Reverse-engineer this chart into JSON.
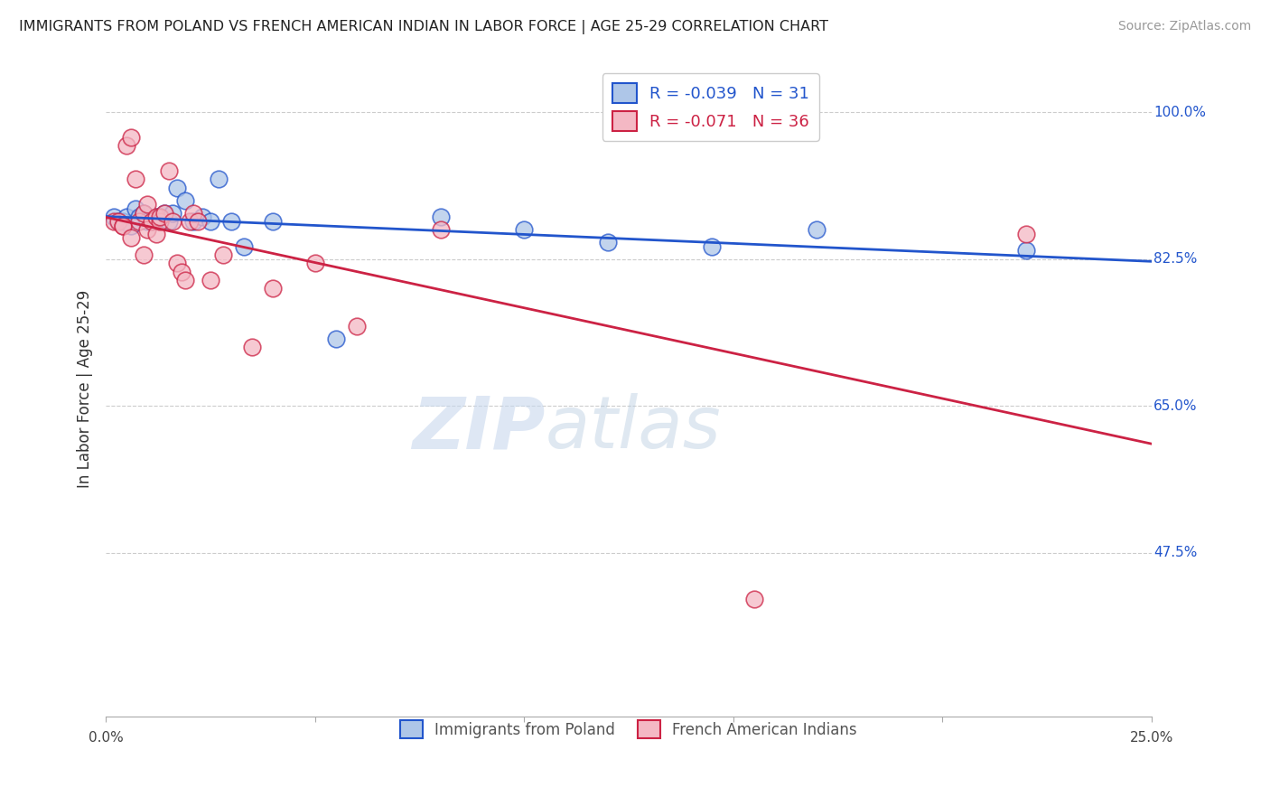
{
  "title": "IMMIGRANTS FROM POLAND VS FRENCH AMERICAN INDIAN IN LABOR FORCE | AGE 25-29 CORRELATION CHART",
  "source": "Source: ZipAtlas.com",
  "ylabel": "In Labor Force | Age 25-29",
  "legend_blue_label": "Immigrants from Poland",
  "legend_pink_label": "French American Indians",
  "R_blue": -0.039,
  "N_blue": 31,
  "R_pink": -0.071,
  "N_pink": 36,
  "xlim": [
    0.0,
    0.25
  ],
  "ylim": [
    0.28,
    1.06
  ],
  "blue_color": "#aec6e8",
  "pink_color": "#f4b8c4",
  "blue_line_color": "#2255cc",
  "pink_line_color": "#cc2244",
  "watermark_zip": "ZIP",
  "watermark_atlas": "atlas",
  "y_tick_labels": [
    "100.0%",
    "82.5%",
    "65.0%",
    "47.5%"
  ],
  "y_tick_values": [
    1.0,
    0.825,
    0.65,
    0.475
  ],
  "blue_scatter_x": [
    0.002,
    0.003,
    0.004,
    0.005,
    0.006,
    0.007,
    0.008,
    0.009,
    0.01,
    0.011,
    0.012,
    0.013,
    0.014,
    0.015,
    0.016,
    0.017,
    0.019,
    0.021,
    0.023,
    0.025,
    0.027,
    0.03,
    0.033,
    0.04,
    0.055,
    0.08,
    0.1,
    0.12,
    0.145,
    0.17,
    0.22
  ],
  "blue_scatter_y": [
    0.875,
    0.87,
    0.87,
    0.875,
    0.865,
    0.885,
    0.875,
    0.88,
    0.87,
    0.87,
    0.875,
    0.875,
    0.88,
    0.87,
    0.88,
    0.91,
    0.895,
    0.87,
    0.875,
    0.87,
    0.92,
    0.87,
    0.84,
    0.87,
    0.73,
    0.875,
    0.86,
    0.845,
    0.84,
    0.86,
    0.835
  ],
  "pink_scatter_x": [
    0.002,
    0.003,
    0.004,
    0.004,
    0.005,
    0.006,
    0.006,
    0.007,
    0.008,
    0.009,
    0.009,
    0.01,
    0.01,
    0.011,
    0.012,
    0.012,
    0.013,
    0.013,
    0.014,
    0.015,
    0.016,
    0.017,
    0.018,
    0.019,
    0.02,
    0.021,
    0.022,
    0.025,
    0.028,
    0.035,
    0.04,
    0.05,
    0.06,
    0.08,
    0.155,
    0.22
  ],
  "pink_scatter_y": [
    0.87,
    0.87,
    0.865,
    0.865,
    0.96,
    0.97,
    0.85,
    0.92,
    0.87,
    0.88,
    0.83,
    0.89,
    0.86,
    0.87,
    0.855,
    0.875,
    0.87,
    0.875,
    0.88,
    0.93,
    0.87,
    0.82,
    0.81,
    0.8,
    0.87,
    0.88,
    0.87,
    0.8,
    0.83,
    0.72,
    0.79,
    0.82,
    0.745,
    0.86,
    0.42,
    0.855
  ]
}
